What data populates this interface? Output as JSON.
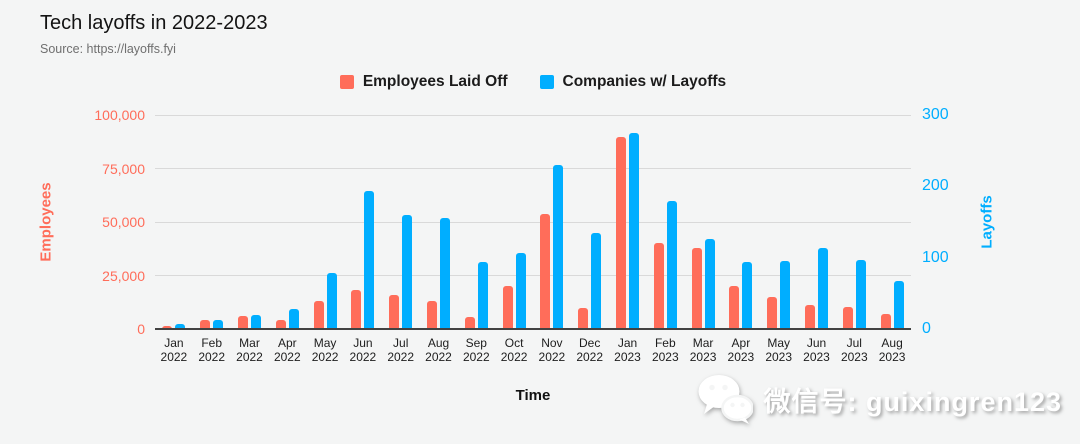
{
  "header": {
    "title": "Tech layoffs in 2022-2023",
    "source": "Source: https://layoffs.fyi"
  },
  "legend": {
    "items": [
      {
        "label": "Employees Laid Off",
        "color": "#ff6d5a"
      },
      {
        "label": "Companies w/ Layoffs",
        "color": "#00aeff"
      }
    ]
  },
  "watermark": {
    "text": "微信号: guixingren123",
    "icon": "wechat-icon"
  },
  "chart_data": {
    "type": "bar",
    "title": "Tech layoffs in 2022-2023",
    "xlabel": "Time",
    "grid": true,
    "legend_position": "top-center",
    "background": "#f4f5f5",
    "categories": [
      "Jan 2022",
      "Feb 2022",
      "Mar 2022",
      "Apr 2022",
      "May 2022",
      "Jun 2022",
      "Jul 2022",
      "Aug 2022",
      "Sep 2022",
      "Oct 2022",
      "Nov 2022",
      "Dec 2022",
      "Jan 2023",
      "Feb 2023",
      "Mar 2023",
      "Apr 2023",
      "May 2023",
      "Jun 2023",
      "Jul 2023",
      "Aug 2023"
    ],
    "y_left": {
      "label": "Employees",
      "color": "#ff6d5a",
      "min": 0,
      "max": 100000,
      "ticks": [
        "0",
        "25,000",
        "50,000",
        "75,000",
        "100,000"
      ]
    },
    "y_right": {
      "label": "Layoffs",
      "color": "#00aeff",
      "min": 0,
      "max": 300,
      "ticks": [
        "0",
        "100",
        "200",
        "300"
      ]
    },
    "series": [
      {
        "name": "Employees Laid Off",
        "axis": "left",
        "color": "#ff6d5a",
        "values": [
          1200,
          4000,
          5900,
          4200,
          12900,
          18000,
          16000,
          13000,
          5800,
          20000,
          53800,
          10000,
          89500,
          40000,
          37800,
          20000,
          14900,
          11000,
          10500,
          7000
        ]
      },
      {
        "name": "Companies w/ Layoffs",
        "axis": "right",
        "color": "#00aeff",
        "values": [
          7,
          13,
          20,
          28,
          78,
          193,
          160,
          155,
          94,
          107,
          230,
          134,
          275,
          180,
          126,
          94,
          96,
          113,
          97,
          67
        ]
      }
    ]
  }
}
